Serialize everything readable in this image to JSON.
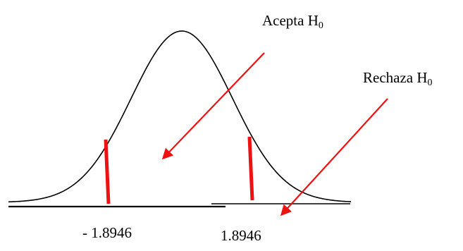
{
  "labels": {
    "accept_text": "Acepta H",
    "reject_text": "Rechaza H",
    "subscript": "0",
    "critical_left": "- 1.8946",
    "critical_right": "1.8946"
  },
  "colors": {
    "curve": "#000000",
    "axis": "#000000",
    "critical_lines": "#ee1111",
    "arrows": "#ee1111"
  }
}
